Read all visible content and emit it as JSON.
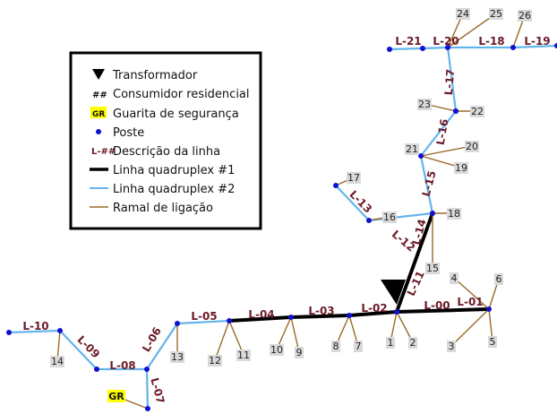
{
  "colors": {
    "quadruplex1": "#000000",
    "quadruplex2": "#64b4ec",
    "ramal": "#9a6a2a",
    "poste": "#1010d0",
    "line_label": "#6b1a26",
    "guarita_bg": "#ffff00",
    "consumer_bg": "#d9d9d9"
  },
  "legend": {
    "items": [
      {
        "key": "transformador",
        "label": "Transformador"
      },
      {
        "key": "consumidor",
        "label": "Consumidor residencial"
      },
      {
        "key": "guarita",
        "label": "Guarita de segurança"
      },
      {
        "key": "poste",
        "label": "Poste"
      },
      {
        "key": "descricao",
        "label": "Descrição da linha"
      },
      {
        "key": "q1",
        "label": "Linha quadruplex #1"
      },
      {
        "key": "q2",
        "label": "Linha quadruplex #2"
      },
      {
        "key": "ramal",
        "label": "Ramal de ligação"
      }
    ],
    "symbols": {
      "consumidor": "##",
      "guarita": "GR",
      "descricao": "L-##"
    }
  },
  "line_labels": [
    "L-00",
    "L-01",
    "L-02",
    "L-03",
    "L-04",
    "L-05",
    "L-06",
    "L-07",
    "L-08",
    "L-09",
    "L-10",
    "L-11",
    "L-12",
    "L-13",
    "L-14",
    "L-15",
    "L-16",
    "L-17",
    "L-18",
    "L-19",
    "L-20",
    "L-21"
  ],
  "consumers": [
    "1",
    "2",
    "3",
    "4",
    "5",
    "6",
    "7",
    "8",
    "9",
    "10",
    "11",
    "12",
    "13",
    "14",
    "15",
    "16",
    "17",
    "18",
    "19",
    "20",
    "21",
    "22",
    "23",
    "24",
    "25",
    "26"
  ],
  "guarita": "GR"
}
